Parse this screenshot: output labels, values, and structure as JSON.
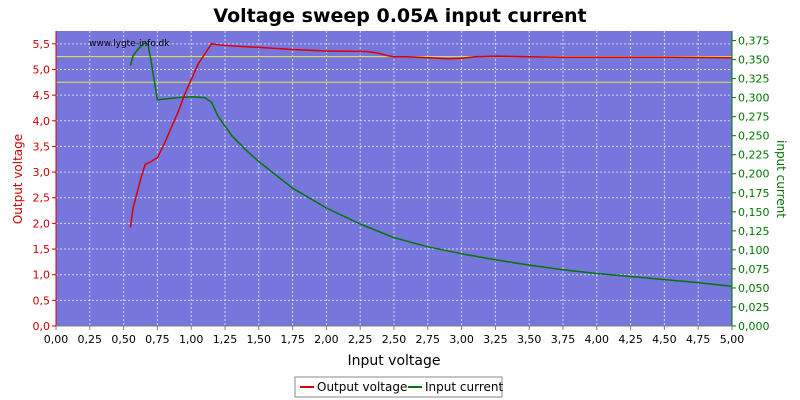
{
  "chart_data": {
    "type": "line",
    "title": "Voltage sweep 0.05A input current",
    "watermark": "www.lygte-info.dk",
    "xlabel": "Input voltage",
    "ylabel_left": "Output voltage",
    "ylabel_right": "input current",
    "xlim": [
      0,
      5
    ],
    "ylim_left": [
      0,
      5.75
    ],
    "ylim_right": [
      0,
      0.3875
    ],
    "x_ticks": [
      "0,00",
      "0,25",
      "0,50",
      "0,75",
      "1,00",
      "1,25",
      "1,50",
      "1,75",
      "2,00",
      "2,25",
      "2,50",
      "2,75",
      "3,00",
      "3,25",
      "3,50",
      "3,75",
      "4,00",
      "4,25",
      "4,50",
      "4,75",
      "5,00"
    ],
    "y_left_ticks": [
      "0,0",
      "0,5",
      "1,0",
      "1,5",
      "2,0",
      "2,5",
      "3,0",
      "3,5",
      "4,0",
      "4,5",
      "5,0",
      "5,5"
    ],
    "y_right_ticks": [
      "0,000",
      "0,025",
      "0,050",
      "0,075",
      "0,100",
      "0,125",
      "0,150",
      "0,175",
      "0,200",
      "0,225",
      "0,250",
      "0,275",
      "0,300",
      "0,325",
      "0,350",
      "0,375"
    ],
    "grid": true,
    "legend_position": "bottom-center",
    "reference_lines_left": [
      4.75,
      5.25
    ],
    "colors": {
      "plot_bg": "#7676dc",
      "output_voltage": "#dd0000",
      "input_current": "#007700",
      "reference_line": "#e8e84a",
      "left_axis": "#cc0000",
      "right_axis": "#007700"
    },
    "series": [
      {
        "name": "Output voltage",
        "axis": "left",
        "x": [
          0.55,
          0.57,
          0.6,
          0.63,
          0.66,
          0.7,
          0.75,
          0.8,
          0.85,
          0.9,
          0.95,
          1.0,
          1.05,
          1.1,
          1.15,
          1.2,
          1.3,
          1.5,
          1.75,
          2.0,
          2.3,
          2.38,
          2.45,
          2.5,
          2.6,
          2.75,
          2.9,
          3.0,
          3.1,
          3.25,
          3.5,
          3.75,
          4.0,
          4.5,
          5.0
        ],
        "y": [
          1.92,
          2.3,
          2.6,
          2.9,
          3.15,
          3.2,
          3.28,
          3.55,
          3.85,
          4.15,
          4.5,
          4.8,
          5.1,
          5.3,
          5.5,
          5.48,
          5.46,
          5.43,
          5.39,
          5.36,
          5.35,
          5.32,
          5.27,
          5.25,
          5.25,
          5.23,
          5.21,
          5.22,
          5.25,
          5.26,
          5.25,
          5.24,
          5.24,
          5.24,
          5.23
        ]
      },
      {
        "name": "Input current",
        "axis": "right",
        "x": [
          0.55,
          0.57,
          0.6,
          0.63,
          0.66,
          0.68,
          0.7,
          0.72,
          0.75,
          0.8,
          0.9,
          1.0,
          1.1,
          1.15,
          1.2,
          1.3,
          1.4,
          1.5,
          1.6,
          1.75,
          2.0,
          2.25,
          2.5,
          2.75,
          3.0,
          3.25,
          3.5,
          3.75,
          4.0,
          4.25,
          4.5,
          4.75,
          5.0
        ],
        "y": [
          0.342,
          0.355,
          0.362,
          0.368,
          0.372,
          0.37,
          0.352,
          0.33,
          0.297,
          0.298,
          0.3,
          0.301,
          0.3,
          0.294,
          0.275,
          0.25,
          0.232,
          0.216,
          0.202,
          0.181,
          0.155,
          0.134,
          0.116,
          0.104,
          0.095,
          0.087,
          0.08,
          0.074,
          0.069,
          0.065,
          0.061,
          0.057,
          0.052
        ]
      }
    ]
  }
}
